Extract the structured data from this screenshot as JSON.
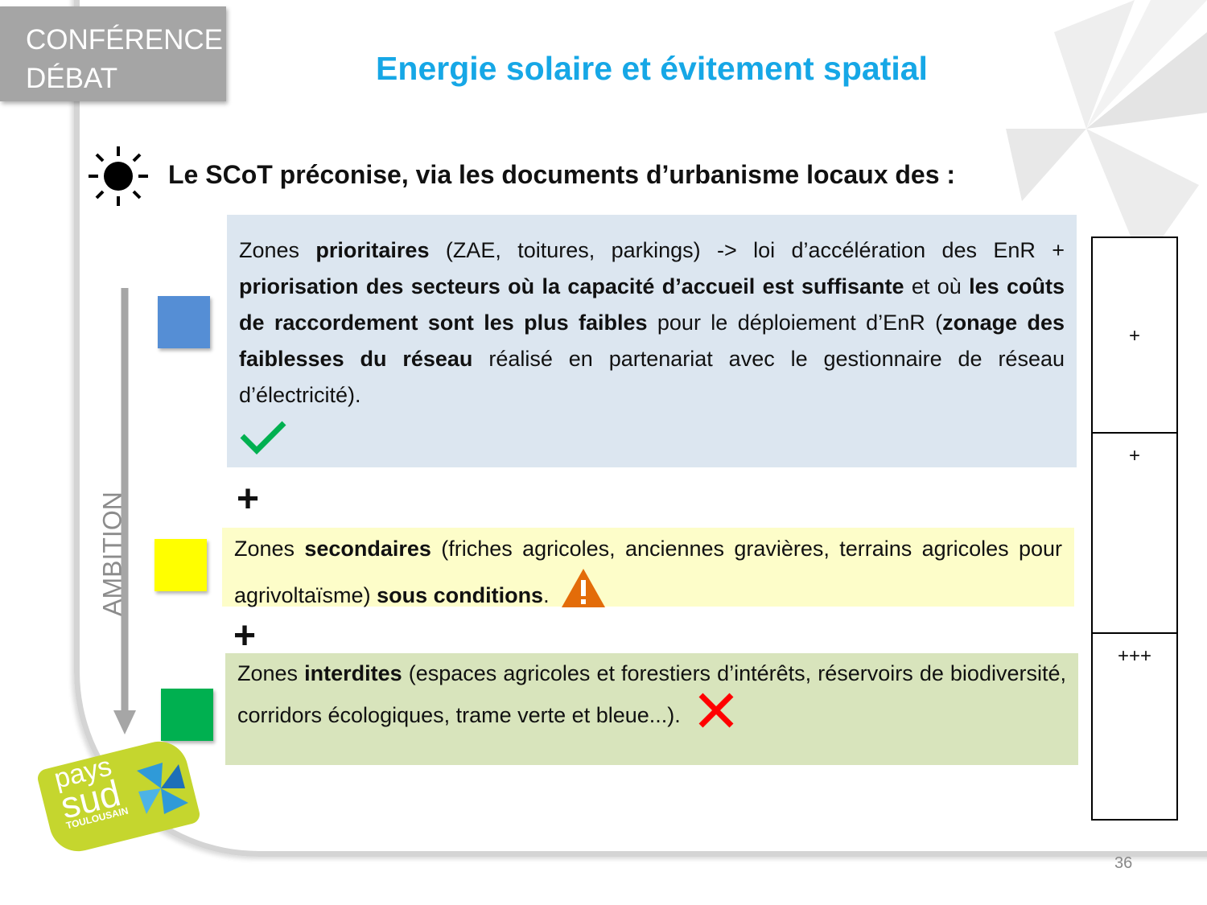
{
  "header": {
    "tag_line1": "CONFÉRENCE",
    "tag_line2": "DÉBAT",
    "title": "Energie solaire et évitement spatial"
  },
  "lead": "Le SCoT préconise, via les documents d’urbanisme locaux des :",
  "ambition_label": "AMBITION",
  "zones": [
    {
      "color": "#558ed5",
      "segments": [
        [
          "Zones ",
          false
        ],
        [
          "prioritaires",
          true
        ],
        [
          " (ZAE, toitures, parkings) -> loi d’accélération des EnR + ",
          false
        ],
        [
          "priorisation des secteurs où la capacité d’accueil est suffisante",
          true
        ],
        [
          " et où ",
          false
        ],
        [
          "les coûts de raccordement sont les plus faibles",
          true
        ],
        [
          " pour le déploiement d’EnR (",
          false
        ],
        [
          "zonage des faiblesses du réseau",
          true
        ],
        [
          " réalisé en partenariat avec le gestionnaire de réseau d’électricité).",
          false
        ]
      ],
      "status_icon": "check-icon",
      "background": "#dce6f0"
    },
    {
      "color": "#ffff00",
      "segments": [
        [
          "Zones ",
          false
        ],
        [
          "secondaires",
          true
        ],
        [
          " (friches agricoles, anciennes gravières, terrains agricoles pour agrivoltaïsme) ",
          false
        ],
        [
          "sous conditions",
          true
        ],
        [
          ".",
          false
        ]
      ],
      "status_icon": "warning-icon",
      "background": "#fdfdc9"
    },
    {
      "color": "#00b050",
      "segments": [
        [
          "Zones ",
          false
        ],
        [
          "interdites",
          true
        ],
        [
          " (espaces agricoles et forestiers d’intérêts, réservoirs de biodiversité, corridors écologiques, trame verte et bleue...).",
          false
        ]
      ],
      "status_icon": "cross-icon",
      "background": "#d8e4bc"
    }
  ],
  "separators": [
    "+",
    "+"
  ],
  "side_column": [
    "+",
    "+",
    "+++"
  ],
  "logo": {
    "line1": "pays",
    "line2": "sud",
    "line3": "TOULOUSAIN"
  },
  "page_number": "36",
  "colors": {
    "title": "#16a7e6",
    "check": "#00b050",
    "warning": "#e36c09",
    "cross": "#ff0000"
  }
}
